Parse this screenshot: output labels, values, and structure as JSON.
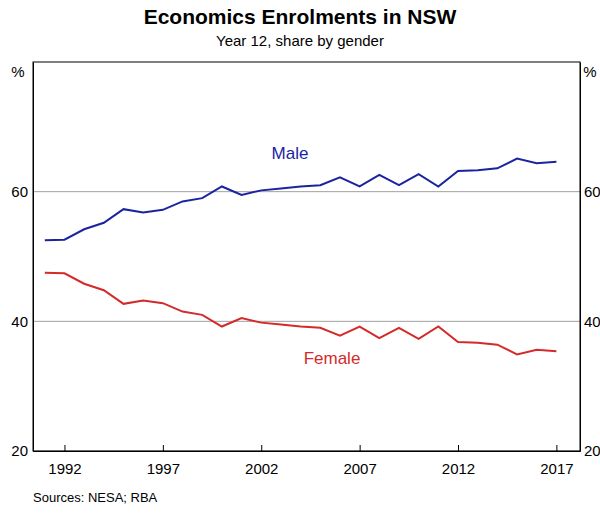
{
  "chart_data": {
    "type": "line",
    "title": "Economics Enrolments in NSW",
    "subtitle": "Year 12, share by gender",
    "y_label": "%",
    "source": "Sources: NESA; RBA",
    "x": [
      1991,
      1992,
      1993,
      1994,
      1995,
      1996,
      1997,
      1998,
      1999,
      2000,
      2001,
      2002,
      2003,
      2004,
      2005,
      2006,
      2007,
      2008,
      2009,
      2010,
      2011,
      2012,
      2013,
      2014,
      2015,
      2016,
      2017
    ],
    "series": [
      {
        "name": "Male",
        "color": "#1a24a0",
        "values": [
          52.5,
          52.6,
          54.2,
          55.2,
          57.3,
          56.8,
          57.2,
          58.5,
          59.0,
          60.8,
          59.5,
          60.2,
          60.5,
          60.8,
          61.0,
          62.2,
          60.8,
          62.6,
          61.0,
          62.7,
          60.8,
          63.2,
          63.3,
          63.6,
          65.1,
          64.4,
          64.6
        ]
      },
      {
        "name": "Female",
        "color": "#d42a2a",
        "values": [
          47.5,
          47.4,
          45.8,
          44.8,
          42.7,
          43.2,
          42.8,
          41.5,
          41.0,
          39.2,
          40.5,
          39.8,
          39.5,
          39.2,
          39.0,
          37.8,
          39.2,
          37.4,
          39.0,
          37.3,
          39.2,
          36.8,
          36.7,
          36.4,
          34.9,
          35.6,
          35.4
        ]
      }
    ],
    "xlim": [
      1990.4,
      2018.2
    ],
    "xticks": [
      1992,
      1997,
      2002,
      2007,
      2012,
      2017
    ],
    "ylim": [
      20,
      80
    ],
    "yticks": [
      20,
      40,
      60
    ],
    "grid": true
  }
}
